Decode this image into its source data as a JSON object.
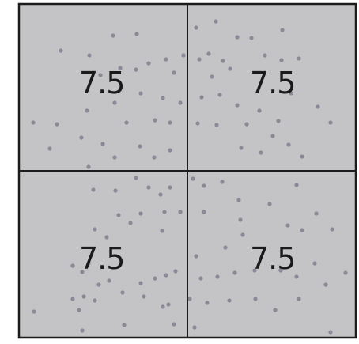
{
  "quadrants": [
    {
      "label": "7.5"
    },
    {
      "label": "7.5"
    },
    {
      "label": "7.5"
    },
    {
      "label": "7.5"
    }
  ],
  "colors": {
    "fill": "#c4c4c7",
    "border": "#1c1c1c",
    "dot": "#8a8a96"
  }
}
